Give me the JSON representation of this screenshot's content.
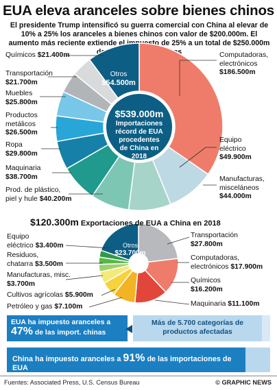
{
  "header": {
    "title": "EUA eleva aranceles sobre bienes chinos",
    "subtitle": "El presidente Trump intensificó su guerra comercial con China al elevar de 10% a 25% los aranceles a bienes chinos con valor de $200.000m. El aumento más reciente extiende el impuesto de 25% a un total de $250.000m de importaciones chinas"
  },
  "chart_data": [
    {
      "type": "pie",
      "title": "Importaciones récord de EUA procedentes de China en 2018",
      "total": "$539.000m",
      "center_line1": "Importaciones",
      "center_line2": "récord de EUA",
      "center_line3": "procedentes",
      "center_line4": "de China en",
      "center_line5": "2018",
      "units": "US$ millones",
      "slices": [
        {
          "name": "Computadoras, electrónicos",
          "value": 186500,
          "label": "$186.500m",
          "color": "#ef7c6a"
        },
        {
          "name": "Equipo eléctrico",
          "value": 49900,
          "label": "$49.900m",
          "color": "#bdd9e3"
        },
        {
          "name": "Manufacturas, misceláneos",
          "value": 44000,
          "label": "$44.000m",
          "color": "#a6d4c8"
        },
        {
          "name": "Prod. de plástico, piel y hule",
          "value": 40200,
          "label": "$40.200m",
          "color": "#7ec6b4"
        },
        {
          "name": "Maquinaria",
          "value": 38700,
          "label": "$38.700m",
          "color": "#1f9a8c"
        },
        {
          "name": "Ropa",
          "value": 29800,
          "label": "$29.800m",
          "color": "#1780a8"
        },
        {
          "name": "Productos metálicos",
          "value": 26500,
          "label": "$26.500m",
          "color": "#29a6d8"
        },
        {
          "name": "Muebles",
          "value": 25800,
          "label": "$25.800m",
          "color": "#78c7e8"
        },
        {
          "name": "Transportación",
          "value": 21700,
          "label": "$21.700m",
          "color": "#b2b5b8"
        },
        {
          "name": "Químicos",
          "value": 21400,
          "label": "$21.400m",
          "color": "#d9dadc"
        },
        {
          "name": "Otros",
          "value": 54500,
          "label": "$54.500m",
          "color": "#0d5e84"
        }
      ]
    },
    {
      "type": "pie",
      "title": "Exportaciones de EUA a China en 2018",
      "total": "$120.300m",
      "units": "US$ millones",
      "slices": [
        {
          "name": "Transportación",
          "value": 27800,
          "label": "$27.800m",
          "color": "#b7b9bc"
        },
        {
          "name": "Computadoras, electrónicos",
          "value": 17900,
          "label": "$17.900m",
          "color": "#ef7c6a"
        },
        {
          "name": "Químicos",
          "value": 16200,
          "label": "$16.200m",
          "color": "#e2463a"
        },
        {
          "name": "Maquinaria",
          "value": 11100,
          "label": "$11.100m",
          "color": "#f2b324"
        },
        {
          "name": "Petróleo y gas",
          "value": 7100,
          "label": "$7.100m",
          "color": "#f7d23c"
        },
        {
          "name": "Cultivos agrícolas",
          "value": 5900,
          "label": "$5.900m",
          "color": "#f4ea7a"
        },
        {
          "name": "Manufacturas, misc.",
          "value": 3700,
          "label": "$3.700m",
          "color": "#9ed06a"
        },
        {
          "name": "Residuos, chatarra",
          "value": 3500,
          "label": "$3.500m",
          "color": "#57b847"
        },
        {
          "name": "Equipo eléctrico",
          "value": 3400,
          "label": "$3.400m",
          "color": "#2f9a45"
        },
        {
          "name": "Otros",
          "value": 23700,
          "label": "$23.700m",
          "color": "#0d5e84"
        }
      ]
    }
  ],
  "labels1": {
    "computadoras_name1": "Computadoras,",
    "computadoras_name2": "electrónicos",
    "computadoras_val": "$186.500m",
    "equipo_name1": "Equipo",
    "equipo_name2": "eléctrico",
    "equipo_val": "$49.900m",
    "manuf_name1": "Manufacturas,",
    "manuf_name2": "misceláneos",
    "manuf_val": "$44.000m",
    "plastico_name1": "Prod. de plástico,",
    "plastico_name2": "piel y hule",
    "plastico_val": "$40.200m",
    "maquinaria_name": "Maquinaria",
    "maquinaria_val": "$38.700m",
    "ropa_name": "Ropa",
    "ropa_val": "$29.800m",
    "metalicos_name1": "Productos",
    "metalicos_name2": "metálicos",
    "metalicos_val": "$26.500m",
    "muebles_name": "Muebles",
    "muebles_val": "$25.800m",
    "transport_name": "Transportación",
    "transport_val": "$21.700m",
    "quimicos_name": "Químicos",
    "quimicos_val": "$21.400m",
    "otros_name": "Otros",
    "otros_val": "$54.500m"
  },
  "labels2": {
    "section_total": "$120.300m",
    "section_title": "Exportaciones de EUA a China en 2018",
    "equipo_name1": "Equipo",
    "equipo_name2": "eléctrico",
    "equipo_val": "$3.400m",
    "residuos_name1": "Residuos,",
    "residuos_name2": "chatarra",
    "residuos_val": "$3.500m",
    "manuf_name": "Manufacturas, misc.",
    "manuf_val": "$3.700m",
    "cultivos_name": "Cultivos agrícolas",
    "cultivos_val": "$5.900m",
    "petroleo_name": "Petróleo y gas",
    "petroleo_val": "$7.100m",
    "transport_name": "Transportación",
    "transport_val": "$27.800m",
    "computadoras_name1": "Computadoras,",
    "computadoras_name2": "electrónicos",
    "computadoras_val": "$17.900m",
    "quimicos_name": "Químicos",
    "quimicos_val": "$16.200m",
    "maquinaria_name": "Maquinaria",
    "maquinaria_val": "$11.100m",
    "otros_name": "Otros",
    "otros_val": "$23.700m"
  },
  "boxes": {
    "eua_line1": "EUA ha impuesto aranceles a",
    "eua_pct": "47%",
    "eua_line2": " de las import. chinas",
    "categorias": "Más de 5.700 categorías de productos afectadas",
    "china_pre": "China ha impuesto aranceles a ",
    "china_pct": "91%",
    "china_post": " de las importaciones de EUA"
  },
  "progress": {
    "eua_fraction": 0.47,
    "china_fraction": 0.91
  },
  "footer": {
    "sources": "Fuentes: Associated Press, U.S. Census Bureau",
    "brand": "© GRAPHIC NEWS"
  }
}
